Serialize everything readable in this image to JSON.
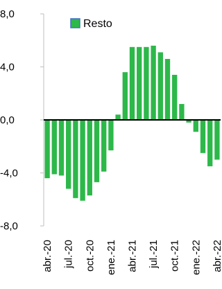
{
  "chart_data": {
    "type": "bar",
    "series": [
      {
        "name": "Resto",
        "values": [
          -4.4,
          -4.1,
          -4.2,
          -5.2,
          -5.9,
          -6.1,
          -5.7,
          -4.7,
          -3.9,
          -2.3,
          0.4,
          3.6,
          5.5,
          5.5,
          5.5,
          5.6,
          5.1,
          4.6,
          3.4,
          1.2,
          -0.2,
          -0.9,
          -2.5,
          -3.5,
          -3.0
        ]
      }
    ],
    "x_tick_labels": [
      "abr.-20",
      "jul.-20",
      "oct.-20",
      "ene.-21",
      "abr.-21",
      "jul.-21",
      "oct.-21",
      "ene.-22",
      "abr.-22"
    ],
    "x_tick_every": 3,
    "y_tick_labels": [
      "8,0",
      "4,0",
      "0,0",
      "-4,0",
      "-8,0"
    ],
    "y_ticks": [
      8,
      4,
      0,
      -4,
      -8
    ],
    "ylim": [
      -8,
      8
    ],
    "legend_position": "top-center",
    "grid": false,
    "colors": {
      "bar": "#2DB84A",
      "legend_swatch": "#2DB84A",
      "legend_swatch_border": "#4472C4",
      "axis": "#BFBFBF",
      "zero_line": "#000000"
    }
  }
}
